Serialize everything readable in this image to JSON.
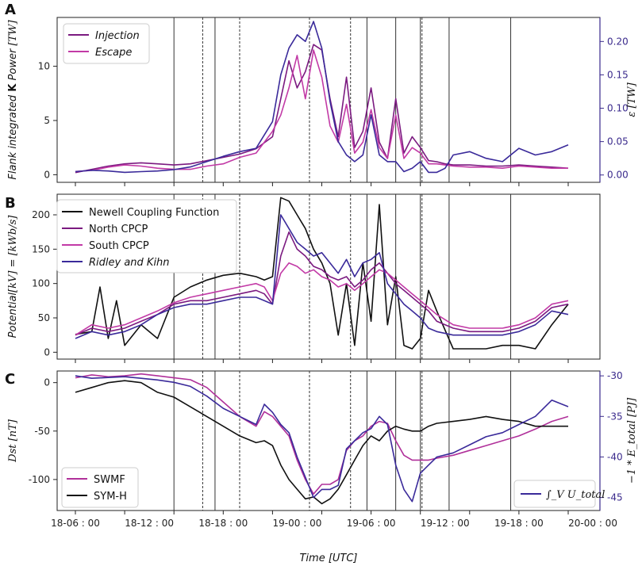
{
  "colors": {
    "injection": "#7b1a80",
    "escape": "#c23aa6",
    "epsilon": "#3a2a9a",
    "newell": "#111111",
    "north": "#7b1a80",
    "south": "#c23aa6",
    "ridley": "#3a2a9a",
    "swmf": "#b0309a",
    "symh": "#111111",
    "energy": "#3a2a9a",
    "right_axis": "#3a2a8c"
  },
  "chart_data": [
    {
      "panel": "A",
      "type": "line",
      "xlabel": "",
      "ylabel": "Flank integrated K Power [TW]",
      "ylabel_parts": {
        "plain": "Flank integrated ",
        "bold": "K",
        "plain2": " Power ",
        "math": "[TW]"
      },
      "y2label": "ε [TW]",
      "ylim": [
        -0.7,
        14.5
      ],
      "yticks": [
        0,
        5,
        10
      ],
      "y2lim": [
        -0.011,
        0.236
      ],
      "y2ticks": [
        "0.00",
        "0.05",
        "0.10",
        "0.15",
        "0.20"
      ],
      "legend": {
        "position": "top-left",
        "entries": [
          "Injection",
          "Escape"
        ]
      },
      "series": [
        {
          "name": "Injection",
          "axis": "left",
          "x": [
            0,
            2,
            4,
            6,
            8,
            10,
            12,
            14,
            16,
            18,
            20,
            22,
            24,
            25,
            26,
            27,
            28,
            29,
            30,
            31,
            32,
            33,
            34,
            35,
            36,
            37,
            38,
            39,
            40,
            41,
            42,
            43,
            44,
            45,
            46,
            48,
            50,
            52,
            54,
            56,
            58,
            60
          ],
          "values": [
            0.2,
            0.5,
            0.8,
            1.0,
            1.1,
            1.0,
            0.9,
            1.0,
            1.3,
            1.6,
            1.9,
            2.4,
            3.5,
            7.0,
            10.5,
            8.0,
            9.5,
            12.0,
            11.5,
            7.0,
            3.5,
            9.0,
            2.5,
            4.0,
            8.0,
            3.0,
            1.5,
            7.0,
            2.0,
            3.5,
            2.5,
            1.3,
            1.2,
            1.0,
            0.9,
            0.9,
            0.8,
            0.8,
            0.9,
            0.8,
            0.7,
            0.6
          ]
        },
        {
          "name": "Escape",
          "axis": "left",
          "x": [
            0,
            2,
            4,
            6,
            8,
            10,
            12,
            14,
            16,
            18,
            20,
            22,
            24,
            25,
            26,
            27,
            28,
            29,
            30,
            31,
            32,
            33,
            34,
            35,
            36,
            37,
            38,
            39,
            40,
            41,
            42,
            43,
            44,
            45,
            46,
            48,
            50,
            52,
            54,
            56,
            58,
            60
          ],
          "values": [
            0.3,
            0.4,
            0.7,
            0.9,
            0.8,
            0.6,
            0.5,
            0.5,
            0.8,
            1.0,
            1.6,
            2.0,
            4.0,
            5.5,
            8.0,
            11.0,
            7.0,
            11.5,
            9.0,
            4.5,
            3.0,
            6.5,
            2.0,
            3.0,
            6.0,
            2.5,
            1.5,
            5.5,
            1.5,
            2.5,
            2.0,
            1.0,
            1.0,
            0.9,
            0.8,
            0.7,
            0.7,
            0.6,
            0.8,
            0.7,
            0.6,
            0.6
          ]
        },
        {
          "name": "ε",
          "axis": "right",
          "x": [
            0,
            2,
            4,
            6,
            8,
            10,
            12,
            14,
            16,
            18,
            20,
            22,
            24,
            25,
            26,
            27,
            28,
            29,
            30,
            31,
            32,
            33,
            34,
            35,
            36,
            37,
            38,
            39,
            40,
            41,
            42,
            43,
            44,
            45,
            46,
            48,
            50,
            52,
            54,
            56,
            58,
            60
          ],
          "values": [
            0.005,
            0.007,
            0.006,
            0.004,
            0.005,
            0.006,
            0.008,
            0.012,
            0.02,
            0.028,
            0.035,
            0.04,
            0.08,
            0.15,
            0.19,
            0.21,
            0.2,
            0.23,
            0.19,
            0.11,
            0.05,
            0.03,
            0.02,
            0.03,
            0.09,
            0.03,
            0.02,
            0.02,
            0.005,
            0.01,
            0.02,
            0.004,
            0.004,
            0.01,
            0.03,
            0.035,
            0.025,
            0.02,
            0.04,
            0.03,
            0.035,
            0.045
          ]
        }
      ]
    },
    {
      "panel": "B",
      "type": "line",
      "xlabel": "",
      "ylabel": "Potential [kV] = [kWb/s]",
      "ylabel_parts": {
        "plain": "Potential",
        "math": "[kV] = [kWb/s]"
      },
      "ylim": [
        -10,
        230
      ],
      "yticks": [
        0,
        50,
        100,
        150,
        200
      ],
      "legend": {
        "position": "top-left",
        "entries": [
          "Newell Coupling Function",
          "North CPCP",
          "South CPCP",
          "Ridley and Kihn"
        ]
      },
      "series": [
        {
          "name": "Newell Coupling Function",
          "x": [
            0,
            2,
            3,
            4,
            5,
            6,
            8,
            10,
            12,
            14,
            16,
            18,
            20,
            22,
            23,
            24,
            25,
            26,
            27,
            28,
            29,
            30,
            31,
            32,
            33,
            34,
            35,
            36,
            37,
            38,
            39,
            40,
            41,
            42,
            43,
            44,
            46,
            48,
            50,
            52,
            54,
            56,
            58,
            60
          ],
          "values": [
            26,
            30,
            95,
            20,
            75,
            10,
            40,
            20,
            80,
            95,
            105,
            112,
            115,
            110,
            105,
            110,
            225,
            220,
            200,
            180,
            150,
            130,
            100,
            25,
            100,
            10,
            130,
            45,
            215,
            40,
            110,
            10,
            5,
            20,
            90,
            60,
            5,
            5,
            5,
            10,
            10,
            5,
            40,
            70
          ]
        },
        {
          "name": "North CPCP",
          "x": [
            0,
            2,
            4,
            6,
            8,
            10,
            12,
            14,
            16,
            18,
            20,
            22,
            23,
            24,
            25,
            26,
            27,
            28,
            29,
            30,
            31,
            32,
            33,
            34,
            35,
            36,
            37,
            38,
            39,
            40,
            41,
            42,
            43,
            44,
            46,
            48,
            50,
            52,
            54,
            56,
            58,
            60
          ],
          "values": [
            25,
            35,
            30,
            35,
            45,
            55,
            70,
            75,
            75,
            80,
            85,
            90,
            85,
            70,
            140,
            175,
            150,
            140,
            125,
            120,
            110,
            105,
            110,
            95,
            105,
            120,
            130,
            115,
            100,
            90,
            80,
            70,
            60,
            45,
            35,
            30,
            30,
            30,
            35,
            45,
            65,
            70
          ]
        },
        {
          "name": "South CPCP",
          "x": [
            0,
            2,
            4,
            6,
            8,
            10,
            12,
            14,
            16,
            18,
            20,
            22,
            23,
            24,
            25,
            26,
            27,
            28,
            29,
            30,
            31,
            32,
            33,
            34,
            35,
            36,
            37,
            38,
            39,
            40,
            41,
            42,
            43,
            44,
            46,
            48,
            50,
            52,
            54,
            56,
            58,
            60
          ],
          "values": [
            25,
            40,
            35,
            40,
            50,
            60,
            72,
            80,
            85,
            90,
            95,
            100,
            95,
            75,
            115,
            130,
            125,
            115,
            120,
            110,
            105,
            95,
            100,
            90,
            100,
            110,
            120,
            115,
            105,
            95,
            85,
            75,
            65,
            55,
            40,
            35,
            35,
            35,
            40,
            50,
            70,
            75
          ]
        },
        {
          "name": "Ridley and Kihn",
          "x": [
            0,
            2,
            4,
            6,
            8,
            10,
            12,
            14,
            16,
            18,
            20,
            22,
            23,
            24,
            25,
            26,
            27,
            28,
            29,
            30,
            31,
            32,
            33,
            34,
            35,
            36,
            37,
            38,
            39,
            40,
            41,
            42,
            43,
            44,
            46,
            48,
            50,
            52,
            54,
            56,
            58,
            60
          ],
          "values": [
            20,
            30,
            25,
            30,
            40,
            55,
            65,
            70,
            70,
            75,
            80,
            80,
            75,
            70,
            200,
            180,
            160,
            150,
            140,
            145,
            130,
            115,
            135,
            110,
            130,
            135,
            145,
            100,
            85,
            70,
            60,
            50,
            35,
            30,
            25,
            25,
            25,
            25,
            30,
            40,
            60,
            55
          ]
        }
      ]
    },
    {
      "panel": "C",
      "type": "line",
      "xlabel": "Time [UTC]",
      "ylabel": "Dst [nT]",
      "y2label": "−1 * E_total [PJ]",
      "ylim": [
        -132,
        12
      ],
      "yticks": [
        0,
        -50,
        -100
      ],
      "y2lim": [
        -46.6,
        -29.4
      ],
      "y2ticks": [
        -30,
        -35,
        -40,
        -45
      ],
      "xticks": [
        "18-06 : 00",
        "18-12 : 00",
        "18-18 : 00",
        "19-00 : 00",
        "19-06 : 00",
        "19-12 : 00",
        "19-18 : 00",
        "20-00 : 00"
      ],
      "legend_left": {
        "position": "bottom-left",
        "entries": [
          "SWMF",
          "SYM-H"
        ]
      },
      "legend_right": {
        "position": "bottom-right",
        "entries": [
          "∫_V U_total"
        ]
      },
      "series": [
        {
          "name": "SWMF",
          "axis": "left",
          "x": [
            0,
            2,
            4,
            6,
            8,
            10,
            12,
            14,
            16,
            18,
            20,
            22,
            23,
            24,
            25,
            26,
            27,
            28,
            29,
            30,
            31,
            32,
            33,
            34,
            35,
            36,
            37,
            38,
            39,
            40,
            41,
            42,
            43,
            44,
            46,
            48,
            50,
            52,
            54,
            56,
            58,
            60
          ],
          "values": [
            5,
            8,
            6,
            7,
            9,
            7,
            5,
            3,
            -5,
            -20,
            -35,
            -45,
            -30,
            -35,
            -45,
            -55,
            -80,
            -100,
            -115,
            -105,
            -105,
            -100,
            -70,
            -60,
            -55,
            -45,
            -40,
            -42,
            -60,
            -75,
            -80,
            -80,
            -80,
            -78,
            -75,
            -70,
            -65,
            -60,
            -55,
            -48,
            -40,
            -35
          ]
        },
        {
          "name": "SYM-H",
          "axis": "left",
          "x": [
            0,
            2,
            4,
            6,
            8,
            10,
            12,
            14,
            16,
            18,
            20,
            22,
            23,
            24,
            25,
            26,
            27,
            28,
            29,
            30,
            31,
            32,
            33,
            34,
            35,
            36,
            37,
            38,
            39,
            40,
            41,
            42,
            43,
            44,
            46,
            48,
            50,
            52,
            54,
            56,
            58,
            60
          ],
          "values": [
            -10,
            -5,
            0,
            2,
            0,
            -10,
            -15,
            -25,
            -35,
            -45,
            -55,
            -62,
            -60,
            -65,
            -85,
            -100,
            -110,
            -120,
            -118,
            -125,
            -120,
            -110,
            -95,
            -80,
            -65,
            -55,
            -60,
            -50,
            -45,
            -48,
            -50,
            -50,
            -45,
            -42,
            -40,
            -38,
            -35,
            -38,
            -40,
            -45,
            -45,
            -45
          ]
        },
        {
          "name": "∫_V U_total",
          "axis": "right",
          "x": [
            0,
            2,
            4,
            6,
            8,
            10,
            12,
            14,
            16,
            18,
            20,
            22,
            23,
            24,
            25,
            26,
            27,
            28,
            29,
            30,
            31,
            32,
            33,
            34,
            35,
            36,
            37,
            38,
            39,
            40,
            41,
            42,
            43,
            44,
            46,
            48,
            50,
            52,
            54,
            56,
            58,
            60
          ],
          "values": [
            -30,
            -30.3,
            -30.2,
            -30.1,
            -30.3,
            -30.5,
            -30.8,
            -31.3,
            -32.5,
            -34,
            -35,
            -36,
            -33.5,
            -34.5,
            -36,
            -37,
            -40,
            -42.5,
            -45,
            -44,
            -44,
            -43.5,
            -39,
            -38,
            -37,
            -36.5,
            -35,
            -36,
            -41,
            -44,
            -45.5,
            -42,
            -41,
            -40,
            -39.5,
            -38.5,
            -37.5,
            -37,
            -36,
            -35,
            -33,
            -33.8
          ]
        }
      ]
    }
  ],
  "shared_x": {
    "range_hours": [
      0,
      60
    ],
    "vlines_solid": [
      12,
      17,
      35.5,
      39,
      42,
      45.5,
      53
    ],
    "vlines_dashed": [
      15.5,
      20,
      28.5,
      33.5,
      42.2
    ]
  }
}
